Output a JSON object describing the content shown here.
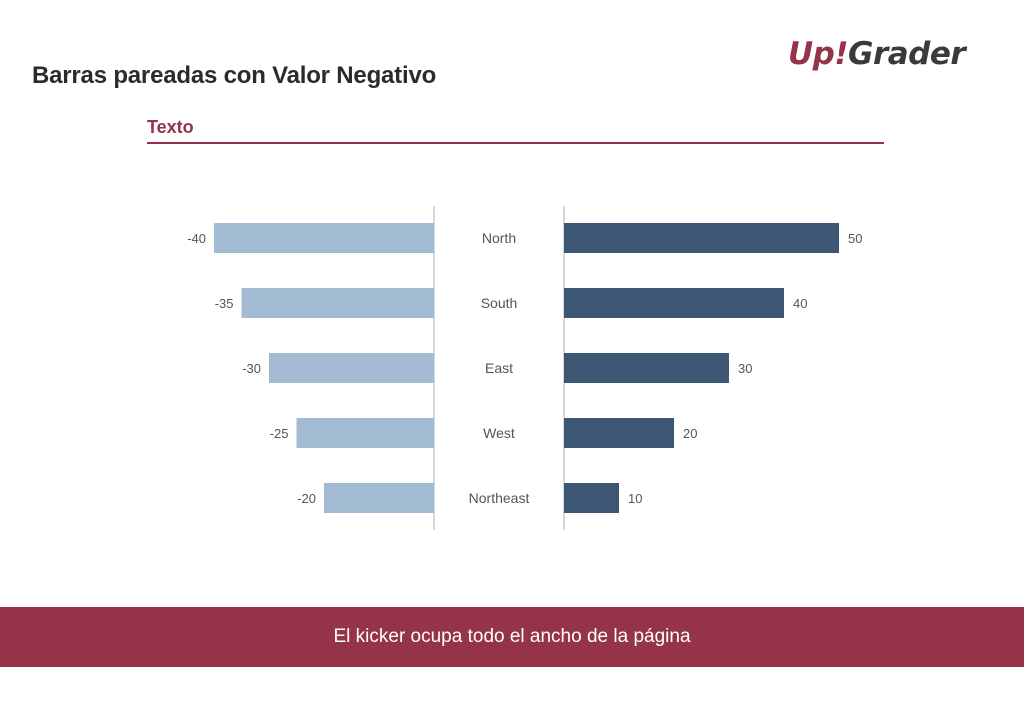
{
  "header": {
    "title": "Barras pareadas con Valor Negativo",
    "logo_part1": "Up!",
    "logo_part2": "Grader",
    "subtitle": "Texto"
  },
  "footer": {
    "kicker": "El kicker ocupa todo el ancho de la página"
  },
  "colors": {
    "accent": "#953449",
    "negative_bar": "#a3bad3",
    "positive_bar": "#3c5674",
    "axis": "#b0b0b0",
    "label": "#555555"
  },
  "chart_data": {
    "type": "bar",
    "orientation": "horizontal-paired",
    "categories": [
      "North",
      "South",
      "East",
      "West",
      "Northeast"
    ],
    "series": [
      {
        "values": [
          -40,
          -35,
          -30,
          -25,
          -20
        ]
      },
      {
        "values": [
          50,
          40,
          30,
          20,
          10
        ]
      }
    ],
    "data_labels": true,
    "grid": false
  }
}
